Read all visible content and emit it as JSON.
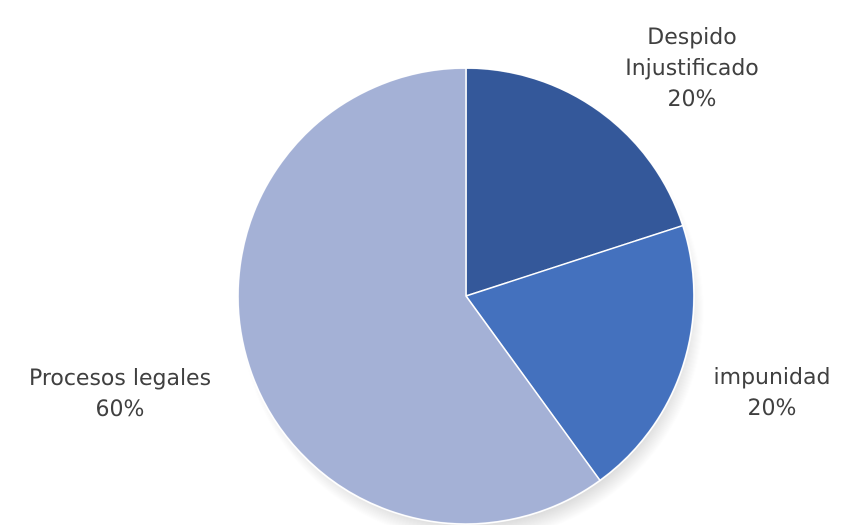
{
  "chart_data": {
    "type": "pie",
    "title": "",
    "slices": [
      {
        "label_lines": [
          "Despido",
          "Injustificado"
        ],
        "value": 20,
        "percent_label": "20%",
        "color": "#34589a"
      },
      {
        "label_lines": [
          "impunidad"
        ],
        "value": 20,
        "percent_label": "20%",
        "color": "#4471be"
      },
      {
        "label_lines": [
          "Procesos legales"
        ],
        "value": 60,
        "percent_label": "60%",
        "color": "#a4b1d6"
      }
    ],
    "start_angle_deg": 0,
    "direction": "clockwise",
    "legend": "none",
    "data_labels": "outside"
  }
}
